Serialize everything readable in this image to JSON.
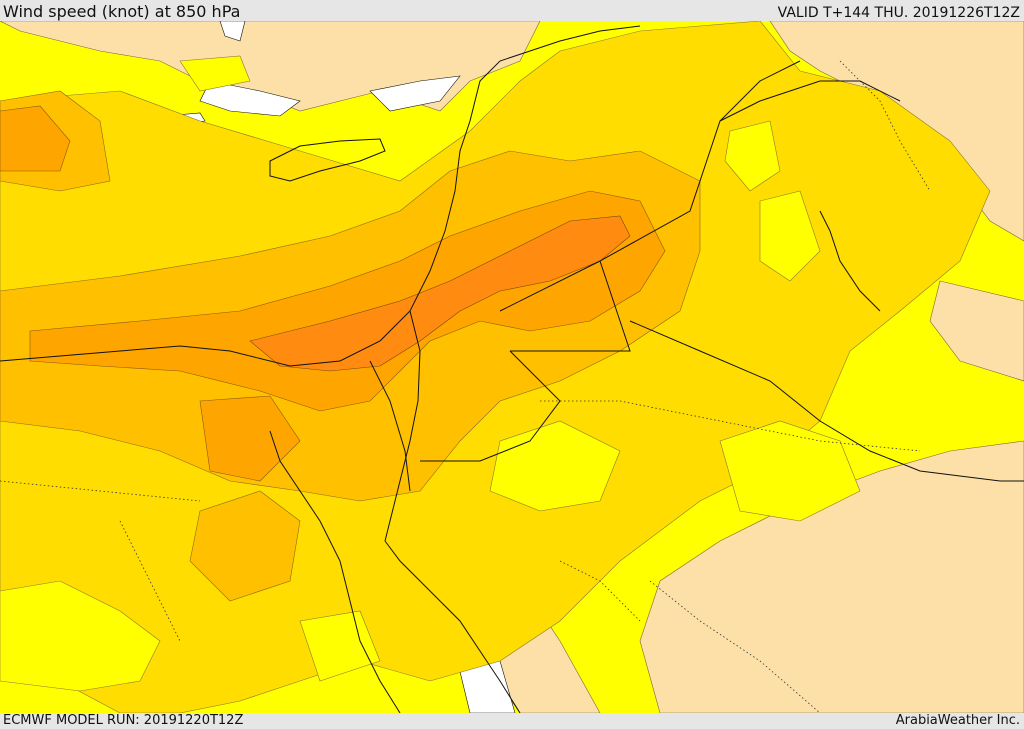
{
  "header": {
    "title": "Wind speed (knot) at 850 hPa",
    "valid": "VALID T+144 THU. 20191226T12Z"
  },
  "footer": {
    "model_run": "ECMWF MODEL RUN: 20191220T12Z",
    "credit": "ArabiaWeather Inc."
  },
  "colors": {
    "lightest": "#fde0a8",
    "yellow": "#ffff00",
    "light_orange": "#ffdd00",
    "orange": "#ffc000",
    "dark_orange": "#ffa500",
    "darkest": "#ff8c10",
    "no_data": "#ffffff"
  }
}
